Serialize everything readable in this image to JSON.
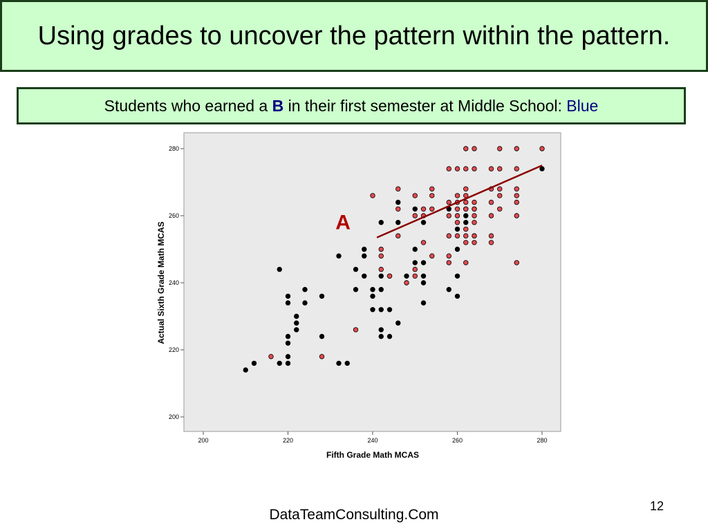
{
  "slide": {
    "title": "Using grades to uncover the pattern within the pattern.",
    "subtitle_pre": "Students who earned a ",
    "subtitle_grade": "B",
    "subtitle_mid": " in their first semester at Middle School: ",
    "subtitle_color_word": "Blue",
    "footer": "DataTeamConsulting.Com",
    "page_number": "12"
  },
  "chart_data": {
    "type": "scatter",
    "xlabel": "Fifth Grade Math  MCAS",
    "ylabel": "Actual Sixth Grade Math  MCAS",
    "xlim": [
      200,
      280
    ],
    "ylim": [
      200,
      280
    ],
    "x_ticks": [
      200,
      220,
      240,
      260,
      280
    ],
    "y_ticks": [
      200,
      220,
      240,
      260,
      280
    ],
    "grid": false,
    "annotation": "A",
    "colors": {
      "black_points": "#000000",
      "red_points": "#e0494f",
      "fit_line": "#8b0000",
      "annotation": "#b30000",
      "plot_bg": "#eaeaea"
    },
    "fit_line": {
      "x": [
        241,
        280
      ],
      "y": [
        253.5,
        275
      ]
    },
    "series": [
      {
        "color": "black",
        "points": [
          [
            210,
            214
          ],
          [
            212,
            216
          ],
          [
            218,
            216
          ],
          [
            220,
            216
          ],
          [
            220,
            218
          ],
          [
            220,
            222
          ],
          [
            220,
            224
          ],
          [
            218,
            244
          ],
          [
            220,
            234
          ],
          [
            220,
            236
          ],
          [
            222,
            226
          ],
          [
            222,
            228
          ],
          [
            222,
            230
          ],
          [
            224,
            234
          ],
          [
            224,
            238
          ],
          [
            228,
            224
          ],
          [
            228,
            236
          ],
          [
            232,
            216
          ],
          [
            234,
            216
          ],
          [
            232,
            248
          ],
          [
            236,
            238
          ],
          [
            236,
            244
          ],
          [
            238,
            242
          ],
          [
            238,
            248
          ],
          [
            238,
            250
          ],
          [
            240,
            232
          ],
          [
            240,
            236
          ],
          [
            240,
            238
          ],
          [
            242,
            224
          ],
          [
            242,
            226
          ],
          [
            242,
            232
          ],
          [
            242,
            238
          ],
          [
            242,
            242
          ],
          [
            242,
            258
          ],
          [
            244,
            224
          ],
          [
            244,
            232
          ],
          [
            246,
            228
          ],
          [
            244,
            242
          ],
          [
            246,
            258
          ],
          [
            246,
            264
          ],
          [
            248,
            242
          ],
          [
            250,
            246
          ],
          [
            250,
            250
          ],
          [
            250,
            262
          ],
          [
            252,
            246
          ],
          [
            252,
            240
          ],
          [
            252,
            242
          ],
          [
            252,
            258
          ],
          [
            252,
            234
          ],
          [
            258,
            238
          ],
          [
            258,
            262
          ],
          [
            260,
            236
          ],
          [
            260,
            242
          ],
          [
            260,
            250
          ],
          [
            260,
            256
          ],
          [
            262,
            258
          ],
          [
            262,
            260
          ],
          [
            262,
            262
          ],
          [
            264,
            254
          ],
          [
            264,
            262
          ],
          [
            280,
            274
          ]
        ]
      },
      {
        "color": "red",
        "points": [
          [
            216,
            218
          ],
          [
            228,
            218
          ],
          [
            236,
            226
          ],
          [
            240,
            266
          ],
          [
            242,
            244
          ],
          [
            242,
            248
          ],
          [
            242,
            250
          ],
          [
            244,
            242
          ],
          [
            246,
            254
          ],
          [
            246,
            262
          ],
          [
            246,
            268
          ],
          [
            248,
            240
          ],
          [
            250,
            242
          ],
          [
            250,
            244
          ],
          [
            250,
            260
          ],
          [
            250,
            266
          ],
          [
            252,
            252
          ],
          [
            252,
            260
          ],
          [
            252,
            262
          ],
          [
            254,
            248
          ],
          [
            254,
            262
          ],
          [
            254,
            266
          ],
          [
            254,
            268
          ],
          [
            258,
            246
          ],
          [
            258,
            248
          ],
          [
            258,
            254
          ],
          [
            258,
            260
          ],
          [
            258,
            264
          ],
          [
            258,
            274
          ],
          [
            260,
            254
          ],
          [
            260,
            258
          ],
          [
            260,
            260
          ],
          [
            260,
            262
          ],
          [
            260,
            264
          ],
          [
            260,
            266
          ],
          [
            260,
            274
          ],
          [
            262,
            246
          ],
          [
            262,
            252
          ],
          [
            262,
            254
          ],
          [
            262,
            256
          ],
          [
            262,
            262
          ],
          [
            262,
            264
          ],
          [
            262,
            266
          ],
          [
            262,
            268
          ],
          [
            262,
            274
          ],
          [
            262,
            280
          ],
          [
            264,
            252
          ],
          [
            264,
            254
          ],
          [
            264,
            258
          ],
          [
            264,
            260
          ],
          [
            264,
            262
          ],
          [
            264,
            264
          ],
          [
            264,
            274
          ],
          [
            264,
            280
          ],
          [
            268,
            252
          ],
          [
            268,
            254
          ],
          [
            268,
            260
          ],
          [
            268,
            264
          ],
          [
            268,
            268
          ],
          [
            268,
            274
          ],
          [
            270,
            262
          ],
          [
            270,
            266
          ],
          [
            270,
            268
          ],
          [
            270,
            274
          ],
          [
            270,
            280
          ],
          [
            274,
            246
          ],
          [
            274,
            260
          ],
          [
            274,
            264
          ],
          [
            274,
            266
          ],
          [
            274,
            268
          ],
          [
            274,
            274
          ],
          [
            274,
            280
          ],
          [
            280,
            280
          ]
        ]
      }
    ]
  }
}
